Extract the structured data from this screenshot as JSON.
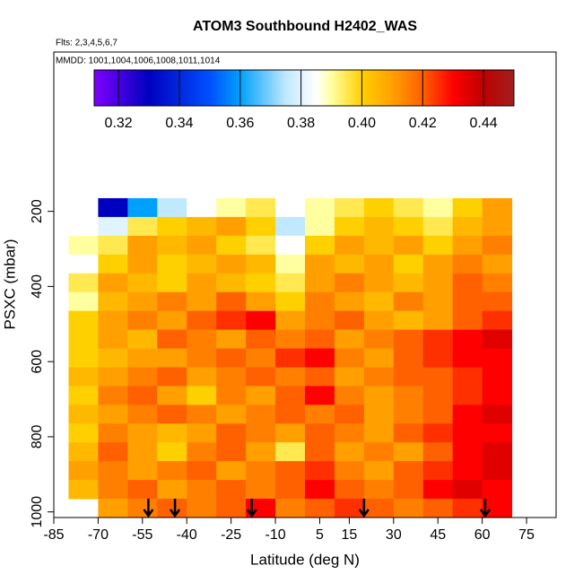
{
  "chart_data": {
    "type": "heatmap",
    "title": "ATOM3 Southbound H2402_WAS",
    "subtitle": "Flts: 2,3,4,5,6,7",
    "annotation": "MMDD: 1001,1004,1006,1008,1011,1014",
    "xlabel": "Latitude (deg N)",
    "ylabel": "PSXC (mbar)",
    "xlim": [
      -85,
      85
    ],
    "ylim": [
      1015,
      -224
    ],
    "xticks": [
      -85,
      -70,
      -55,
      -40,
      -25,
      -10,
      5,
      15,
      30,
      45,
      60,
      75
    ],
    "yticks": [
      200,
      400,
      600,
      800,
      1000
    ],
    "xbins": [
      -80,
      -70,
      -60,
      -50,
      -40,
      -30,
      -20,
      -10,
      0,
      10,
      20,
      30,
      40,
      50,
      60,
      70
    ],
    "ybins": [
      165,
      215,
      265,
      315,
      365,
      415,
      465,
      515,
      565,
      615,
      665,
      715,
      765,
      815,
      865,
      915,
      965,
      1015
    ],
    "z": [
      [
        null,
        0.33,
        0.36,
        0.375,
        0.385,
        0.39,
        0.395,
        0.385,
        0.39,
        0.395,
        0.4,
        0.395,
        0.39,
        0.4,
        0.41
      ],
      [
        0.385,
        0.38,
        0.395,
        0.4,
        0.405,
        0.41,
        0.4,
        0.375,
        0.39,
        0.4,
        0.405,
        0.4,
        0.395,
        0.405,
        0.41
      ],
      [
        0.39,
        0.395,
        0.41,
        0.405,
        0.41,
        0.4,
        0.395,
        0.385,
        0.4,
        0.41,
        0.405,
        0.41,
        0.4,
        0.41,
        0.415
      ],
      [
        0.385,
        0.4,
        0.41,
        0.4,
        0.405,
        0.41,
        0.405,
        0.39,
        0.41,
        0.405,
        0.41,
        0.4,
        0.41,
        0.415,
        0.41
      ],
      [
        0.395,
        0.41,
        0.405,
        0.4,
        0.41,
        0.405,
        0.4,
        0.395,
        0.41,
        0.415,
        0.41,
        0.405,
        0.41,
        0.42,
        0.415
      ],
      [
        0.39,
        0.405,
        0.41,
        0.415,
        0.41,
        0.42,
        0.41,
        0.4,
        0.415,
        0.41,
        0.405,
        0.415,
        0.41,
        0.42,
        0.42
      ],
      [
        0.4,
        0.41,
        0.415,
        0.41,
        0.42,
        0.425,
        0.43,
        0.41,
        0.415,
        0.42,
        0.41,
        0.405,
        0.41,
        0.42,
        0.425
      ],
      [
        0.4,
        0.41,
        0.405,
        0.42,
        0.415,
        0.41,
        0.42,
        0.415,
        0.42,
        0.41,
        0.415,
        0.42,
        0.425,
        0.43,
        0.435
      ],
      [
        0.4,
        0.405,
        0.41,
        0.41,
        0.415,
        0.42,
        0.415,
        0.425,
        0.43,
        0.415,
        0.41,
        0.42,
        0.425,
        0.43,
        0.43
      ],
      [
        0.405,
        0.41,
        0.415,
        0.42,
        0.41,
        0.415,
        0.42,
        0.415,
        0.42,
        0.41,
        0.415,
        0.42,
        0.42,
        0.425,
        0.43
      ],
      [
        0.4,
        0.415,
        0.42,
        0.41,
        0.4,
        0.415,
        0.41,
        0.42,
        0.43,
        0.415,
        0.41,
        0.415,
        0.42,
        0.425,
        0.43
      ],
      [
        0.405,
        0.41,
        0.415,
        0.42,
        0.415,
        0.41,
        0.415,
        0.42,
        0.415,
        0.42,
        0.41,
        0.415,
        0.42,
        0.43,
        0.435
      ],
      [
        0.4,
        0.415,
        0.41,
        0.405,
        0.41,
        0.42,
        0.415,
        0.41,
        0.42,
        0.415,
        0.41,
        0.42,
        0.425,
        0.43,
        0.43
      ],
      [
        0.405,
        0.42,
        0.41,
        0.4,
        0.415,
        0.42,
        0.41,
        0.395,
        0.42,
        0.41,
        0.415,
        0.41,
        0.42,
        0.43,
        0.435
      ],
      [
        0.41,
        0.415,
        0.41,
        0.415,
        0.42,
        0.41,
        0.415,
        0.42,
        0.425,
        0.415,
        0.41,
        0.42,
        0.425,
        0.43,
        0.435
      ],
      [
        0.405,
        0.415,
        0.42,
        0.41,
        0.415,
        0.42,
        0.415,
        0.42,
        0.43,
        0.42,
        0.415,
        0.42,
        0.43,
        0.435,
        0.43
      ],
      [
        null,
        0.41,
        0.415,
        0.42,
        0.415,
        0.42,
        0.43,
        0.415,
        0.42,
        0.425,
        0.42,
        0.415,
        0.42,
        0.425,
        0.43
      ]
    ],
    "clim": [
      0.312,
      0.45
    ],
    "cticks": [
      0.32,
      0.34,
      0.36,
      0.38,
      {
        "value": 0.4,
        "label": "0.40"
      },
      0.42,
      0.44
    ],
    "colorscale": [
      [
        0.312,
        "#7f00ff"
      ],
      [
        0.33,
        "#0000c0"
      ],
      [
        0.35,
        "#0050ff"
      ],
      [
        0.36,
        "#00a0ff"
      ],
      [
        0.375,
        "#c0e8ff"
      ],
      [
        0.385,
        "#ffffff"
      ],
      [
        0.39,
        "#ffffa0"
      ],
      [
        0.4,
        "#ffd000"
      ],
      [
        0.41,
        "#ffa000"
      ],
      [
        0.42,
        "#ff6000"
      ],
      [
        0.43,
        "#ff0000"
      ],
      [
        0.44,
        "#c00000"
      ],
      [
        0.45,
        "#a02020"
      ]
    ],
    "markers_x": [
      -53,
      -44,
      -18,
      20,
      61
    ]
  }
}
